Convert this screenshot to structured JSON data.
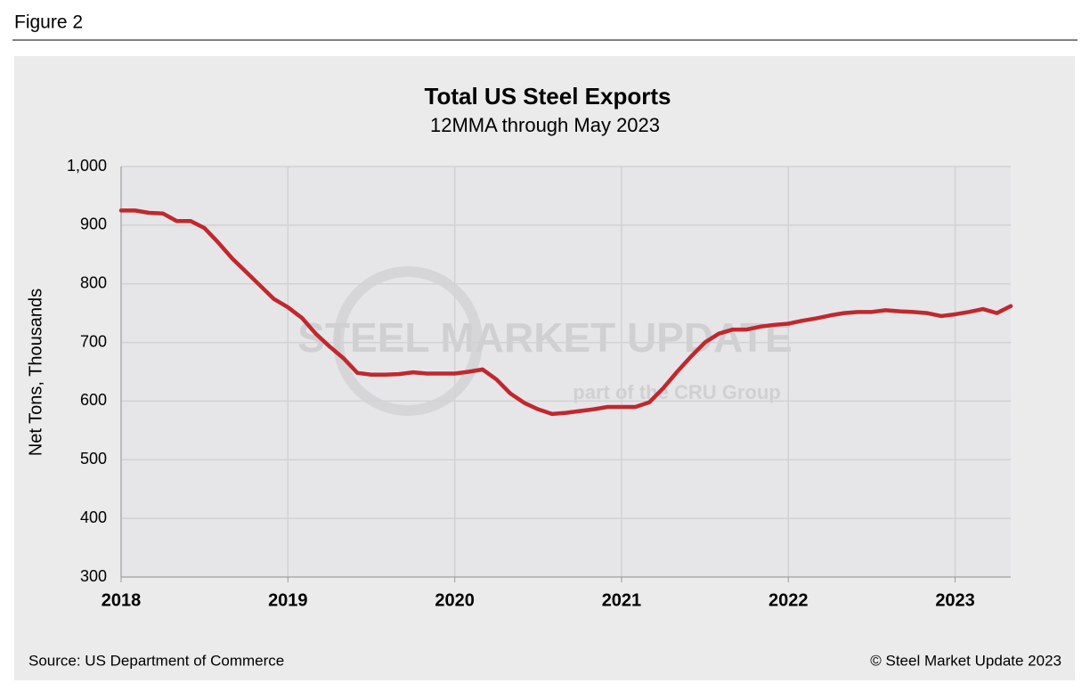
{
  "figure_label": "Figure 2",
  "chart_data": {
    "type": "line",
    "title": "Total US Steel Exports",
    "subtitle": "12MMA through May 2023",
    "y_label": "Net Tons, Thousands",
    "categories": [
      "2018",
      null,
      null,
      null,
      null,
      null,
      null,
      null,
      null,
      null,
      null,
      null,
      "2019",
      null,
      null,
      null,
      null,
      null,
      null,
      null,
      null,
      null,
      null,
      null,
      "2020",
      null,
      null,
      null,
      null,
      null,
      null,
      null,
      null,
      null,
      null,
      null,
      "2021",
      null,
      null,
      null,
      null,
      null,
      null,
      null,
      null,
      null,
      null,
      null,
      "2022",
      null,
      null,
      null,
      null,
      null,
      null,
      null,
      null,
      null,
      null,
      null,
      "2023",
      null,
      null,
      null,
      null
    ],
    "values": [
      925,
      925,
      921,
      920,
      907,
      907,
      895,
      870,
      843,
      820,
      797,
      774,
      760,
      742,
      715,
      693,
      673,
      648,
      645,
      645,
      646,
      649,
      647,
      647,
      647,
      650,
      654,
      637,
      613,
      597,
      586,
      578,
      580,
      583,
      586,
      590,
      590,
      590,
      598,
      622,
      650,
      676,
      700,
      715,
      722,
      722,
      727,
      730,
      732,
      737,
      741,
      746,
      750,
      752,
      752,
      755,
      753,
      752,
      750,
      745,
      748,
      752,
      757,
      750,
      762
    ],
    "color": "#c0282d",
    "ylim": [
      300,
      1000
    ],
    "yticks": [
      300,
      400,
      500,
      600,
      700,
      800,
      900,
      {
        "value": 1000,
        "label": "1,000"
      }
    ],
    "grid": true,
    "watermark": [
      "STEEL MARKET UPDATE",
      "part of the CRU Group"
    ],
    "source": "Source: US Department of Commerce",
    "credit": "© Steel Market Update 2023"
  }
}
